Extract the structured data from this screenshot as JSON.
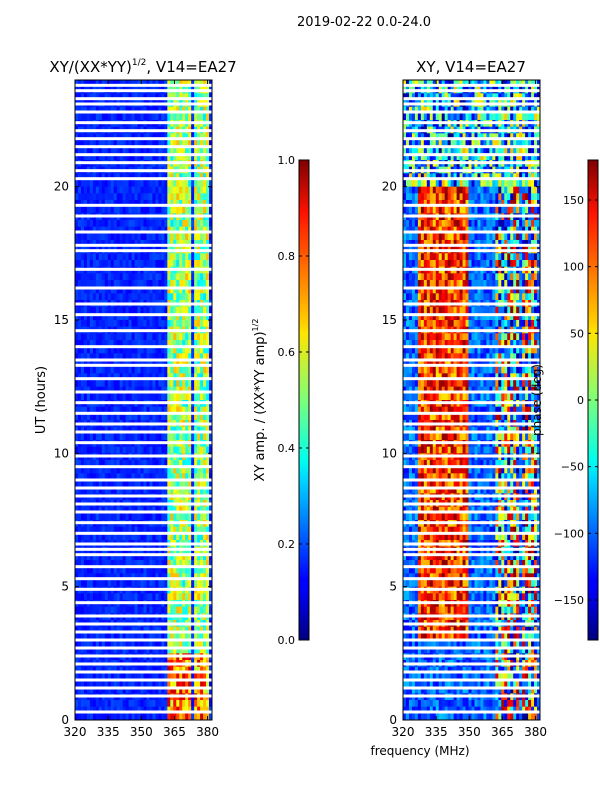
{
  "figure": {
    "suptitle": "2019-02-22 0.0-24.0",
    "shared_xlabel": "frequency (MHz)"
  },
  "chart_data": [
    {
      "type": "heatmap",
      "title_main": "XY/(XX*YY)",
      "title_sup": "1/2",
      "title_rest": ", V14=EA27",
      "xlabel": "",
      "ylabel": "UT (hours)",
      "xlim": [
        320,
        382
      ],
      "ylim": [
        0,
        24
      ],
      "xticks": [
        "320",
        "335",
        "350",
        "365",
        "380"
      ],
      "xtick_values": [
        320,
        335,
        350,
        365,
        380
      ],
      "yticks": [
        "0",
        "5",
        "10",
        "15",
        "20"
      ],
      "ytick_values": [
        0,
        5,
        10,
        15,
        20
      ],
      "colorbar": {
        "label_main": "XY amp. / (XX*YY amp)",
        "label_sup": "1/2",
        "range": [
          0.0,
          1.0
        ],
        "ticks": [
          "0.0",
          "0.2",
          "0.4",
          "0.6",
          "0.8",
          "1.0"
        ],
        "tick_values": [
          0.0,
          0.2,
          0.4,
          0.6,
          0.8,
          1.0
        ]
      }
    },
    {
      "type": "heatmap",
      "title_main": "XY, V14=EA27",
      "xlabel": "frequency (MHz)",
      "ylabel": "",
      "xlim": [
        320,
        382
      ],
      "ylim": [
        0,
        24
      ],
      "xticks": [
        "320",
        "335",
        "350",
        "365",
        "380"
      ],
      "xtick_values": [
        320,
        335,
        350,
        365,
        380
      ],
      "yticks": [
        "0",
        "5",
        "10",
        "15",
        "20"
      ],
      "ytick_values": [
        0,
        5,
        10,
        15,
        20
      ],
      "colorbar": {
        "label_main": "phase (deg)",
        "range": [
          -180,
          180
        ],
        "ticks": [
          "−150",
          "−100",
          "−50",
          "0",
          "50",
          "100",
          "150"
        ],
        "tick_values": [
          -150,
          -100,
          -50,
          0,
          50,
          100,
          150
        ]
      }
    }
  ],
  "flagged_ut_hours": [
    0.3,
    0.9,
    1.2,
    1.5,
    1.8,
    2.1,
    2.4,
    2.7,
    3.0,
    3.3,
    3.6,
    3.9,
    4.4,
    4.9,
    5.3,
    5.75,
    6.2,
    6.4,
    6.6,
    7.0,
    7.4,
    7.8,
    8.1,
    8.4,
    8.7,
    9.0,
    9.5,
    9.9,
    10.4,
    10.8,
    11.1,
    11.5,
    11.9,
    12.3,
    12.8,
    13.3,
    13.5,
    14.0,
    14.6,
    15.2,
    15.6,
    16.2,
    16.9,
    17.6,
    17.8,
    18.3,
    18.9,
    19.3,
    20.3,
    20.6,
    20.9,
    21.2,
    21.5,
    21.8,
    22.1,
    22.4,
    22.8,
    23.1,
    23.3,
    23.6,
    23.8
  ]
}
